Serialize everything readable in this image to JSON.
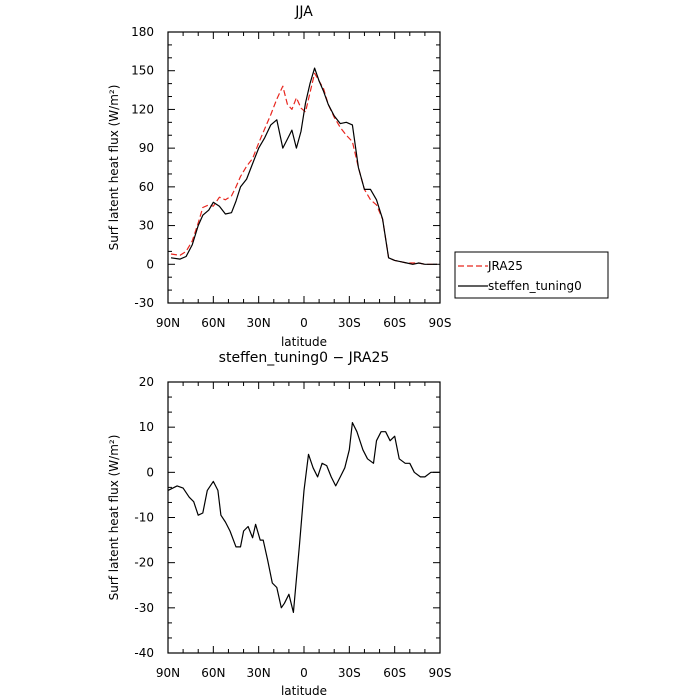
{
  "chart_data": [
    {
      "type": "line",
      "title": "JJA",
      "xlabel": "latitude",
      "ylabel": "Surf latent heat flux (W/m²)",
      "ylim": [
        -30,
        180
      ],
      "yticks": [
        -30,
        0,
        30,
        60,
        90,
        120,
        150,
        180
      ],
      "xlim": [
        90,
        -90
      ],
      "xtick_values": [
        90,
        60,
        30,
        0,
        -30,
        -60,
        -90
      ],
      "xtick_labels": [
        "90N",
        "60N",
        "30N",
        "0",
        "30S",
        "60S",
        "90S"
      ],
      "legend": {
        "placement": "right",
        "entries": [
          "JRA25",
          "steffen_tuning0"
        ]
      },
      "series": [
        {
          "name": "JRA25",
          "color": "#e8271f",
          "dash": "dashed",
          "x": [
            88,
            82,
            78,
            74,
            70,
            67,
            63,
            60,
            56,
            52,
            48,
            45,
            42,
            38,
            34,
            30,
            26,
            22,
            18,
            14,
            11,
            8,
            5,
            2,
            -1,
            -4,
            -7,
            -10,
            -13,
            -16,
            -20,
            -24,
            -28,
            -32,
            -36,
            -40,
            -44,
            -48,
            -52,
            -56,
            -60,
            -64,
            -68,
            -72,
            -76,
            -80,
            -84,
            -88
          ],
          "values": [
            8,
            7,
            10,
            18,
            32,
            44,
            46,
            45,
            52,
            50,
            53,
            60,
            68,
            76,
            82,
            94,
            105,
            116,
            128,
            138,
            124,
            120,
            129,
            121,
            118,
            133,
            148,
            142,
            136,
            124,
            114,
            106,
            100,
            95,
            75,
            58,
            50,
            46,
            35,
            5,
            3,
            2,
            1,
            1,
            1,
            0,
            0,
            0
          ],
          "x_note": ""
        },
        {
          "name": "steffen_tuning0",
          "color": "#000000",
          "dash": "solid",
          "x": [
            88,
            82,
            78,
            74,
            70,
            67,
            63,
            60,
            56,
            52,
            48,
            45,
            42,
            38,
            34,
            30,
            26,
            22,
            18,
            14,
            11,
            8,
            5,
            2,
            -1,
            -4,
            -7,
            -10,
            -13,
            -16,
            -20,
            -24,
            -28,
            -32,
            -36,
            -40,
            -44,
            -48,
            -52,
            -56,
            -60,
            -64,
            -68,
            -72,
            -76,
            -80,
            -84,
            -88
          ],
          "values": [
            5,
            4,
            6,
            15,
            30,
            38,
            42,
            48,
            45,
            39,
            40,
            49,
            60,
            66,
            78,
            90,
            98,
            108,
            112,
            90,
            97,
            104,
            90,
            103,
            125,
            140,
            152,
            142,
            134,
            124,
            115,
            109,
            110,
            108,
            75,
            58,
            58,
            50,
            35,
            5,
            3,
            2,
            1,
            0,
            1,
            0,
            0,
            0
          ]
        }
      ]
    },
    {
      "type": "line",
      "title": "steffen_tuning0 − JRA25",
      "xlabel": "latitude",
      "ylabel": "Surf latent heat flux (W/m²)",
      "ylim": [
        -40,
        20
      ],
      "yticks": [
        -40,
        -30,
        -20,
        -10,
        0,
        10,
        20
      ],
      "xlim": [
        90,
        -90
      ],
      "xtick_values": [
        90,
        60,
        30,
        0,
        -30,
        -60,
        -90
      ],
      "xtick_labels": [
        "90N",
        "60N",
        "30N",
        "0",
        "30S",
        "60S",
        "90S"
      ],
      "series": [
        {
          "color": "#000000",
          "dash": "solid",
          "x": [
            90,
            84,
            80,
            76,
            73,
            70,
            67,
            64,
            60,
            57,
            55,
            52,
            49,
            45,
            42,
            40,
            37,
            34,
            32,
            29,
            27,
            24,
            21,
            18,
            15,
            13,
            10,
            7,
            3,
            0,
            -3,
            -6,
            -9,
            -12,
            -15,
            -18,
            -21,
            -24,
            -27,
            -30,
            -32,
            -35,
            -39,
            -42,
            -46,
            -48,
            -51,
            -54,
            -57,
            -60,
            -63,
            -67,
            -70,
            -73,
            -77,
            -80,
            -84,
            -88,
            -90
          ],
          "values": [
            -4,
            -3,
            -3.5,
            -5.5,
            -6.5,
            -9.5,
            -9,
            -4,
            -2,
            -4,
            -9.5,
            -11,
            -13,
            -16.5,
            -16.5,
            -13,
            -12,
            -14.5,
            -11.5,
            -15,
            -15,
            -19.5,
            -24.5,
            -25.5,
            -30,
            -29,
            -27,
            -31,
            -16,
            -4,
            4,
            1,
            -1,
            2,
            1.5,
            -1,
            -3,
            -1,
            1,
            5,
            11,
            9,
            5,
            3,
            2,
            7,
            9,
            9,
            7,
            8,
            3,
            2,
            2,
            0,
            -1,
            -1,
            0,
            0,
            0
          ]
        }
      ]
    }
  ]
}
